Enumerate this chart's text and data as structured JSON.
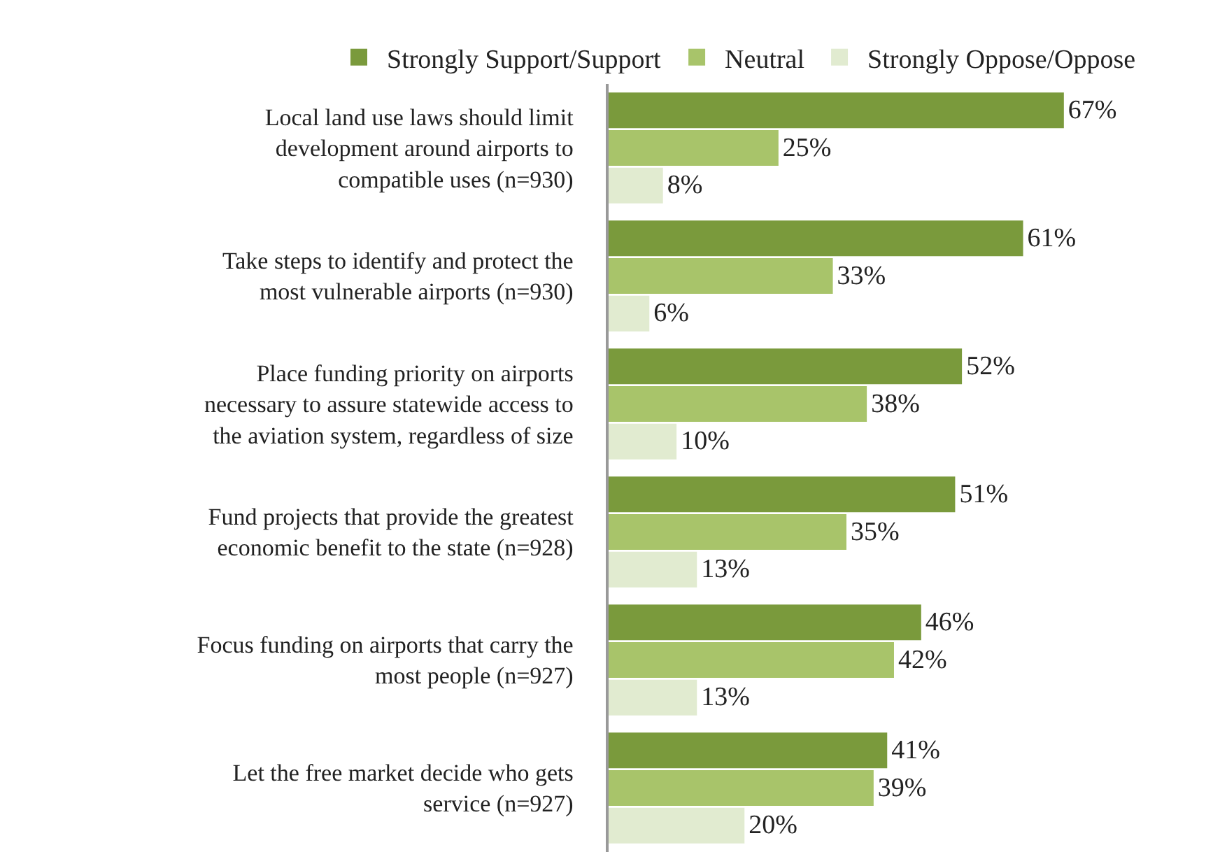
{
  "chart_data": {
    "type": "bar",
    "orientation": "horizontal",
    "legend": "top left",
    "categories": [
      "Local land use laws should limit development around airports to compatible uses (n=930)",
      "Take steps to identify and protect the most vulnerable airports (n=930)",
      "Place funding priority on airports necessary to assure statewide access to the aviation system, regardless of size",
      "Fund projects that provide the greatest economic benefit to the state (n=928)",
      "Focus funding on airports that carry the most people (n=927)",
      "Let the free market decide who gets service (n=927)"
    ],
    "series": [
      {
        "name": "Strongly Support/Support",
        "color": "#7a9a3c",
        "values": [
          67,
          61,
          52,
          51,
          46,
          41
        ],
        "value_labels": [
          "67%",
          "61%",
          "52%",
          "51%",
          "46%",
          "41%"
        ]
      },
      {
        "name": "Neutral",
        "color": "#a8c46a",
        "values": [
          25,
          33,
          38,
          35,
          42,
          39
        ],
        "value_labels": [
          "25%",
          "33%",
          "38%",
          "35%",
          "42%",
          "39%"
        ]
      },
      {
        "name": "Strongly Oppose/Oppose",
        "color": "#e1ebd0",
        "values": [
          8,
          6,
          10,
          13,
          13,
          20
        ],
        "value_labels": [
          "8%",
          "6%",
          "10%",
          "13%",
          "13%",
          "20%"
        ]
      }
    ]
  }
}
